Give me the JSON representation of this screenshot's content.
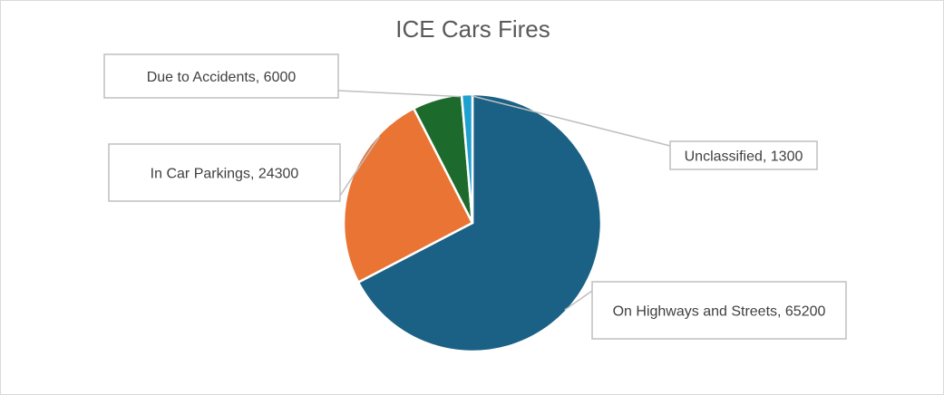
{
  "chart_data": {
    "type": "pie",
    "title": "ICE Cars Fires",
    "categories": [
      "On Highways and Streets",
      "In Car Parkings",
      "Due to Accidents",
      "Unclassified"
    ],
    "values": [
      65200,
      24300,
      6000,
      1300
    ],
    "colors": [
      "#1a6185",
      "#e97434",
      "#1d6b2c",
      "#1ea0d0"
    ],
    "labels": [
      "On Highways and Streets, 65200",
      "In Car Parkings, 24300",
      "Due to Accidents, 6000",
      "Unclassified, 1300"
    ],
    "slice_border_color": "#ffffff",
    "legend": "none",
    "start": "12 o'clock",
    "direction": "clockwise"
  }
}
